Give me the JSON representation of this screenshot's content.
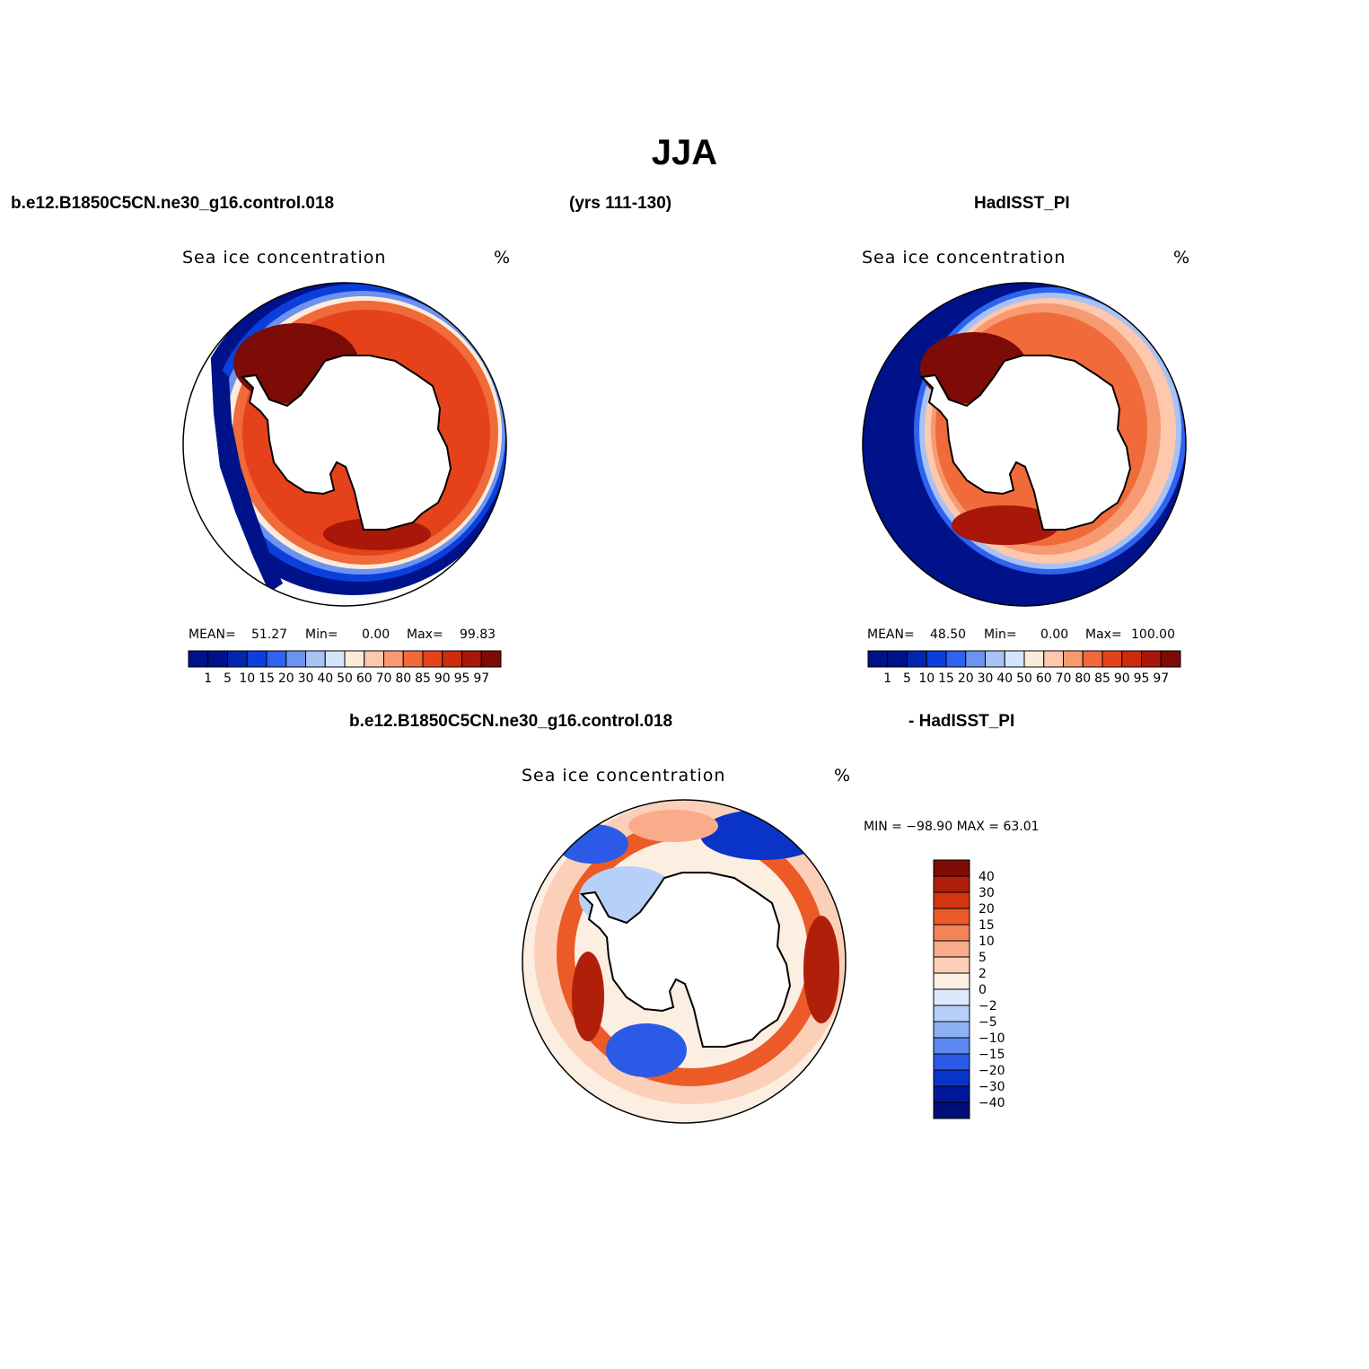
{
  "title": "JJA",
  "header": {
    "left": "b.e12.B1850C5CN.ne30_g16.control.018",
    "center": "(yrs 111-130)",
    "right": "HadISST_PI"
  },
  "panels": [
    {
      "id": "model",
      "title": "Sea ice concentration",
      "units": "%",
      "stats": {
        "mean_label": "MEAN=",
        "mean": "51.27",
        "min_label": "Min=",
        "min": "0.00",
        "max_label": "Max=",
        "max": "99.83"
      }
    },
    {
      "id": "obs",
      "title": "Sea ice concentration",
      "units": "%",
      "stats": {
        "mean_label": "MEAN=",
        "mean": "48.50",
        "min_label": "Min=",
        "min": "0.00",
        "max_label": "Max=",
        "max": "100.00"
      }
    },
    {
      "id": "diff",
      "heading_left": "b.e12.B1850C5CN.ne30_g16.control.018",
      "heading_right": "- HadISST_PI",
      "title": "Sea ice concentration",
      "units": "%",
      "stats_text": "MIN = −98.90  MAX =   63.01"
    }
  ],
  "colorbar_levels": [
    "1",
    "5",
    "10",
    "15",
    "20",
    "30",
    "40",
    "50",
    "60",
    "70",
    "80",
    "85",
    "90",
    "95",
    "97"
  ],
  "colorbar_colors": [
    "#00128a",
    "#0126b0",
    "#0b3fdc",
    "#2e62f0",
    "#6d93f0",
    "#a8c2f4",
    "#d3e4fb",
    "#fdebda",
    "#fdc8ac",
    "#f79a72",
    "#f06a3a",
    "#e5421b",
    "#ce2a0d",
    "#a8170a",
    "#7d0b06"
  ],
  "diff_levels": [
    "40",
    "30",
    "20",
    "15",
    "10",
    "5",
    "2",
    "0",
    "−2",
    "−5",
    "−10",
    "−15",
    "−20",
    "−30",
    "−40"
  ],
  "diff_colors": [
    "#7d0b06",
    "#b01f0a",
    "#d43612",
    "#ec5a28",
    "#f4835a",
    "#f9ab8a",
    "#fcd0b8",
    "#fdeee2",
    "#dce9fb",
    "#b7d0f7",
    "#8eb1f4",
    "#5c87f0",
    "#2b5ae6",
    "#0a33c8",
    "#02189a",
    "#000e78"
  ],
  "map_colors": {
    "land": "#ffffff",
    "coast": "#000000",
    "high_ice": "#7d0b06",
    "mid_ice": "#e5421b",
    "edge_light": "#fdebda",
    "open_ocean": "#00128a",
    "transition": "#2e62f0"
  }
}
